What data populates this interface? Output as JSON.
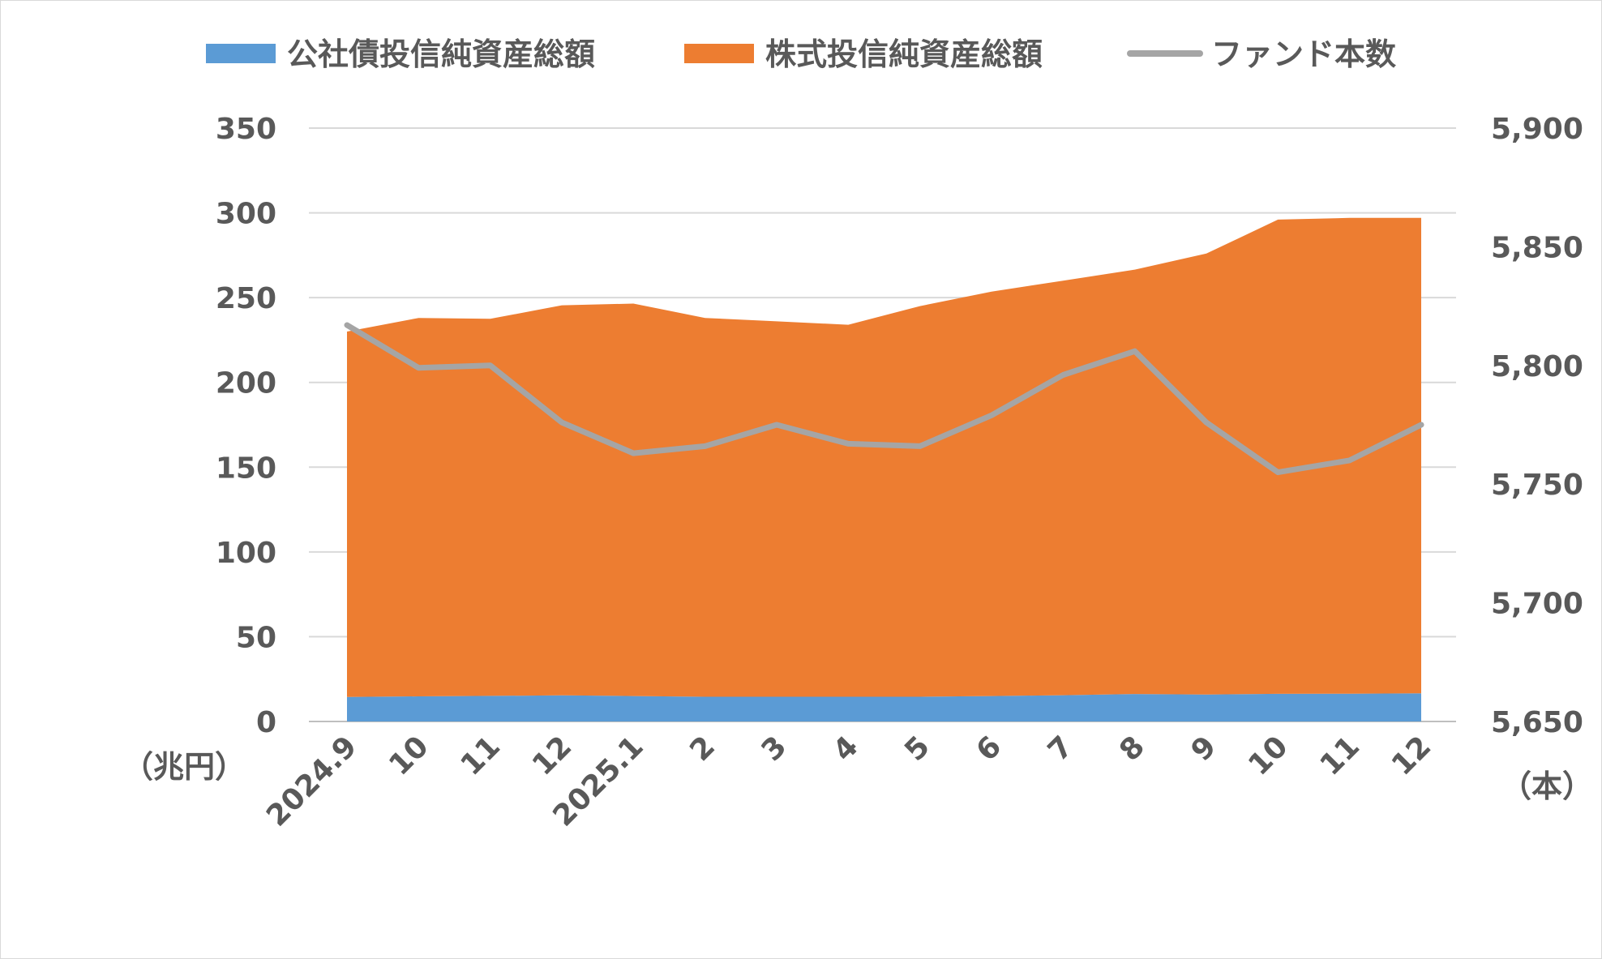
{
  "chart_data": {
    "type": "area",
    "categories": [
      "2024.9",
      "10",
      "11",
      "12",
      "2025.1",
      "2",
      "3",
      "4",
      "5",
      "6",
      "7",
      "8",
      "9",
      "10",
      "11",
      "12"
    ],
    "series": [
      {
        "name": "公社債投信純資産総額",
        "kind": "stacked-area",
        "axis": "left",
        "color": "#5b9bd5",
        "values": [
          14.5,
          14.8,
          15.1,
          15.4,
          15.0,
          14.6,
          14.6,
          14.6,
          14.6,
          15.0,
          15.5,
          16.2,
          15.9,
          16.3,
          16.4,
          16.6
        ]
      },
      {
        "name": "株式投信純資産総額",
        "kind": "stacked-area",
        "axis": "left",
        "color": "#ed7d31",
        "values": [
          215.5,
          223.2,
          222.4,
          230.1,
          231.5,
          223.4,
          221.4,
          219.4,
          230.4,
          238.5,
          244.5,
          250.3,
          260.1,
          279.7,
          280.6,
          280.4
        ]
      },
      {
        "name": "ファンド本数",
        "kind": "line",
        "axis": "right",
        "color": "#a5a5a5",
        "values": [
          5817,
          5799,
          5800,
          5776,
          5763,
          5766,
          5775,
          5767,
          5766,
          5779,
          5796,
          5806,
          5776,
          5755,
          5760,
          5775
        ]
      }
    ],
    "y_left": {
      "min": 0,
      "max": 350,
      "step": 50,
      "ticks": [
        "0",
        "50",
        "100",
        "150",
        "200",
        "250",
        "300",
        "350"
      ],
      "unit_label": "（兆円）"
    },
    "y_right": {
      "min": 5650,
      "max": 5900,
      "step": 50,
      "ticks": [
        "5,650",
        "5,700",
        "5,750",
        "5,800",
        "5,850",
        "5,900"
      ],
      "unit_label": "（本）"
    },
    "grid": true,
    "legend_position": "top"
  }
}
